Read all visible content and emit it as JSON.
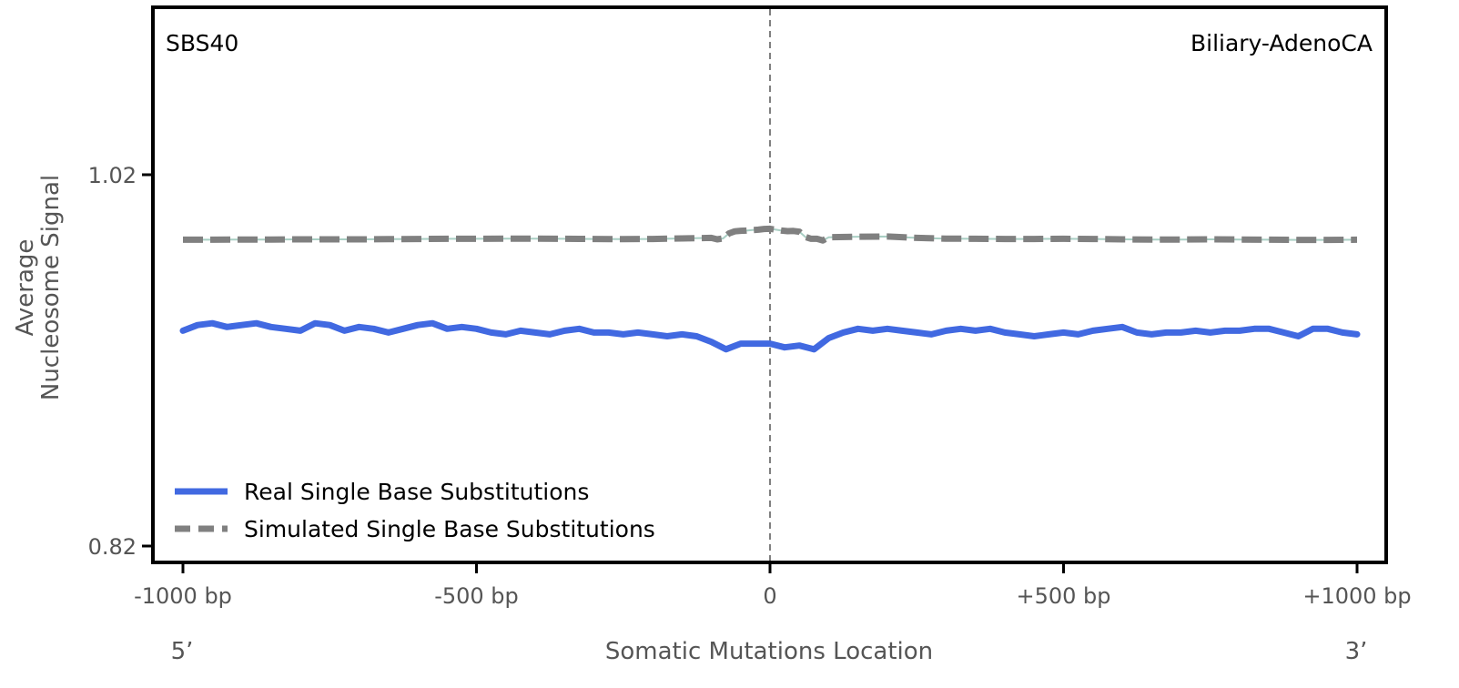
{
  "chart_data": {
    "type": "line",
    "title": "",
    "signature_label": "SBS40",
    "cancer_type_label": "Biliary-AdenoCA",
    "xlabel": "Somatic Mutations Location",
    "ylabel_lines": [
      "Average",
      "Nucleosome Signal"
    ],
    "end_labels": {
      "left": "5’",
      "right": "3’"
    },
    "xlim": [
      -1000,
      1000
    ],
    "ylim": [
      0.82,
      1.02
    ],
    "x_ticks": [
      {
        "value": -1000,
        "label": "-1000 bp"
      },
      {
        "value": -500,
        "label": "-500 bp"
      },
      {
        "value": 0,
        "label": "0"
      },
      {
        "value": 500,
        "label": "+500 bp"
      },
      {
        "value": 1000,
        "label": "+1000 bp"
      }
    ],
    "y_ticks": [
      {
        "value": 1.02,
        "label": "1.02"
      },
      {
        "value": 0.82,
        "label": "0.82"
      }
    ],
    "vline_x": 0,
    "legend": {
      "placement": "bottom-left"
    },
    "series": [
      {
        "name": "Real Single Base Substitutions",
        "color": "#4169e1",
        "style": "solid",
        "x": [
          -1000,
          -975,
          -950,
          -925,
          -900,
          -875,
          -850,
          -825,
          -800,
          -775,
          -750,
          -725,
          -700,
          -675,
          -650,
          -625,
          -600,
          -575,
          -550,
          -525,
          -500,
          -475,
          -450,
          -425,
          -400,
          -375,
          -350,
          -325,
          -300,
          -275,
          -250,
          -225,
          -200,
          -175,
          -150,
          -125,
          -100,
          -75,
          -50,
          -25,
          0,
          25,
          50,
          75,
          100,
          125,
          150,
          175,
          200,
          225,
          250,
          275,
          300,
          325,
          350,
          375,
          400,
          425,
          450,
          475,
          500,
          525,
          550,
          575,
          600,
          625,
          650,
          675,
          700,
          725,
          750,
          775,
          800,
          825,
          850,
          875,
          900,
          925,
          950,
          975,
          1000
        ],
        "y": [
          0.936,
          0.939,
          0.94,
          0.938,
          0.939,
          0.94,
          0.938,
          0.937,
          0.936,
          0.94,
          0.939,
          0.936,
          0.938,
          0.937,
          0.935,
          0.937,
          0.939,
          0.94,
          0.937,
          0.938,
          0.937,
          0.935,
          0.934,
          0.936,
          0.935,
          0.934,
          0.936,
          0.937,
          0.935,
          0.935,
          0.934,
          0.935,
          0.934,
          0.933,
          0.934,
          0.933,
          0.93,
          0.926,
          0.929,
          0.929,
          0.929,
          0.927,
          0.928,
          0.926,
          0.932,
          0.935,
          0.937,
          0.936,
          0.937,
          0.936,
          0.935,
          0.934,
          0.936,
          0.937,
          0.936,
          0.937,
          0.935,
          0.934,
          0.933,
          0.934,
          0.935,
          0.934,
          0.936,
          0.937,
          0.938,
          0.935,
          0.934,
          0.935,
          0.935,
          0.936,
          0.935,
          0.936,
          0.936,
          0.937,
          0.937,
          0.935,
          0.933,
          0.937,
          0.937,
          0.935,
          0.934
        ]
      },
      {
        "name": "Simulated Single Base Substitutions",
        "color": "#808080",
        "style": "dashed",
        "x": [
          -1000,
          -950,
          -900,
          -850,
          -800,
          -750,
          -700,
          -650,
          -600,
          -550,
          -500,
          -450,
          -400,
          -350,
          -300,
          -250,
          -200,
          -150,
          -100,
          -90,
          -80,
          -70,
          -60,
          -50,
          -40,
          -30,
          -20,
          -10,
          0,
          10,
          20,
          30,
          40,
          50,
          60,
          70,
          80,
          90,
          100,
          150,
          200,
          250,
          300,
          350,
          400,
          450,
          500,
          550,
          600,
          650,
          700,
          750,
          800,
          850,
          900,
          950,
          1000
        ],
        "y": [
          0.985,
          0.985,
          0.9851,
          0.9851,
          0.9852,
          0.9852,
          0.9852,
          0.9853,
          0.9854,
          0.9855,
          0.9855,
          0.9856,
          0.9856,
          0.9855,
          0.9854,
          0.9853,
          0.9854,
          0.9857,
          0.986,
          0.9852,
          0.9857,
          0.9884,
          0.9895,
          0.9898,
          0.9899,
          0.9902,
          0.9904,
          0.9908,
          0.9909,
          0.9904,
          0.9899,
          0.9896,
          0.9897,
          0.9893,
          0.9865,
          0.9855,
          0.9855,
          0.9846,
          0.9863,
          0.9866,
          0.9867,
          0.986,
          0.9856,
          0.9855,
          0.9854,
          0.9854,
          0.9855,
          0.9854,
          0.9852,
          0.9851,
          0.9851,
          0.9852,
          0.9851,
          0.985,
          0.9849,
          0.9849,
          0.985
        ]
      }
    ]
  }
}
